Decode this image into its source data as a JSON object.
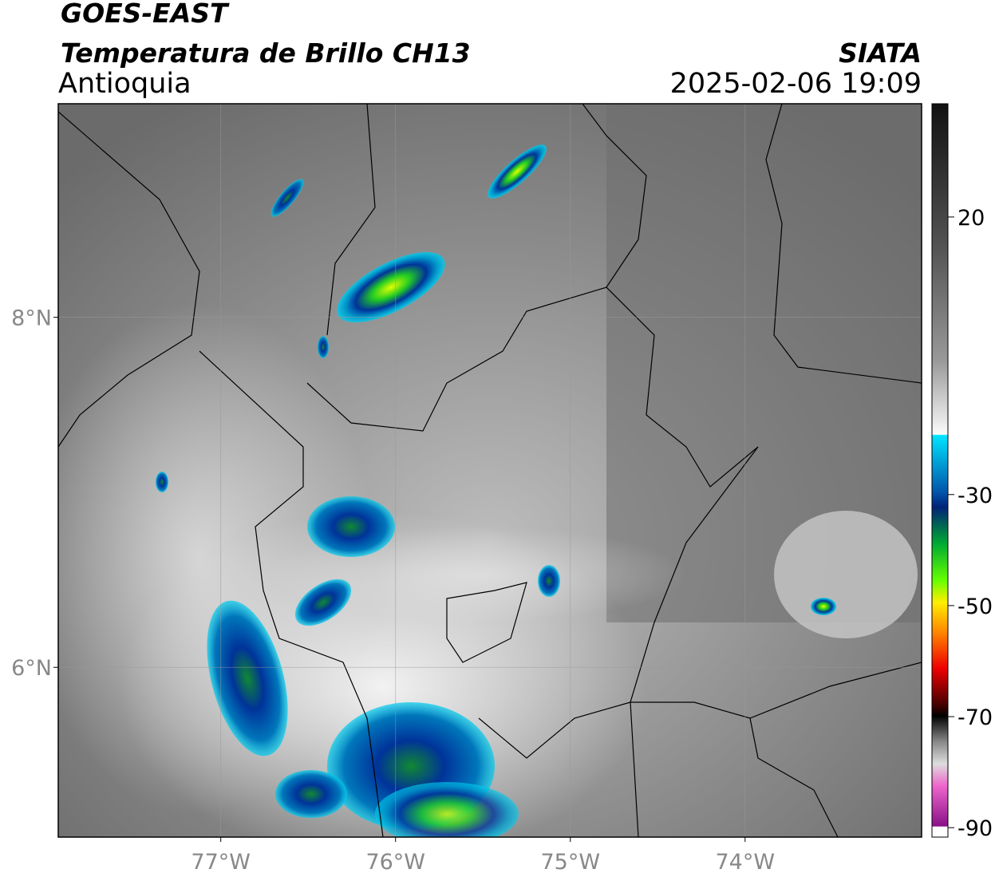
{
  "header": {
    "title": "GOES-EAST",
    "subtitle": "Temperatura de Brillo CH13",
    "region": "Antioquia",
    "source": "SIATA",
    "timestamp": "2025-02-06 19:09"
  },
  "map": {
    "xlim": [
      -77.93,
      -72.99
    ],
    "ylim": [
      5.03,
      9.22
    ],
    "xticks": [
      {
        "value": -77,
        "label": "77°W"
      },
      {
        "value": -76,
        "label": "76°W"
      },
      {
        "value": -75,
        "label": "75°W"
      },
      {
        "value": -74,
        "label": "74°W"
      }
    ],
    "yticks": [
      {
        "value": 6,
        "label": "6°N"
      },
      {
        "value": 8,
        "label": "8°N"
      }
    ],
    "grid": true
  },
  "colorbar": {
    "lim": [
      -91.7,
      40.4
    ],
    "ticks": [
      20,
      -30,
      -50,
      -70,
      -90
    ]
  }
}
